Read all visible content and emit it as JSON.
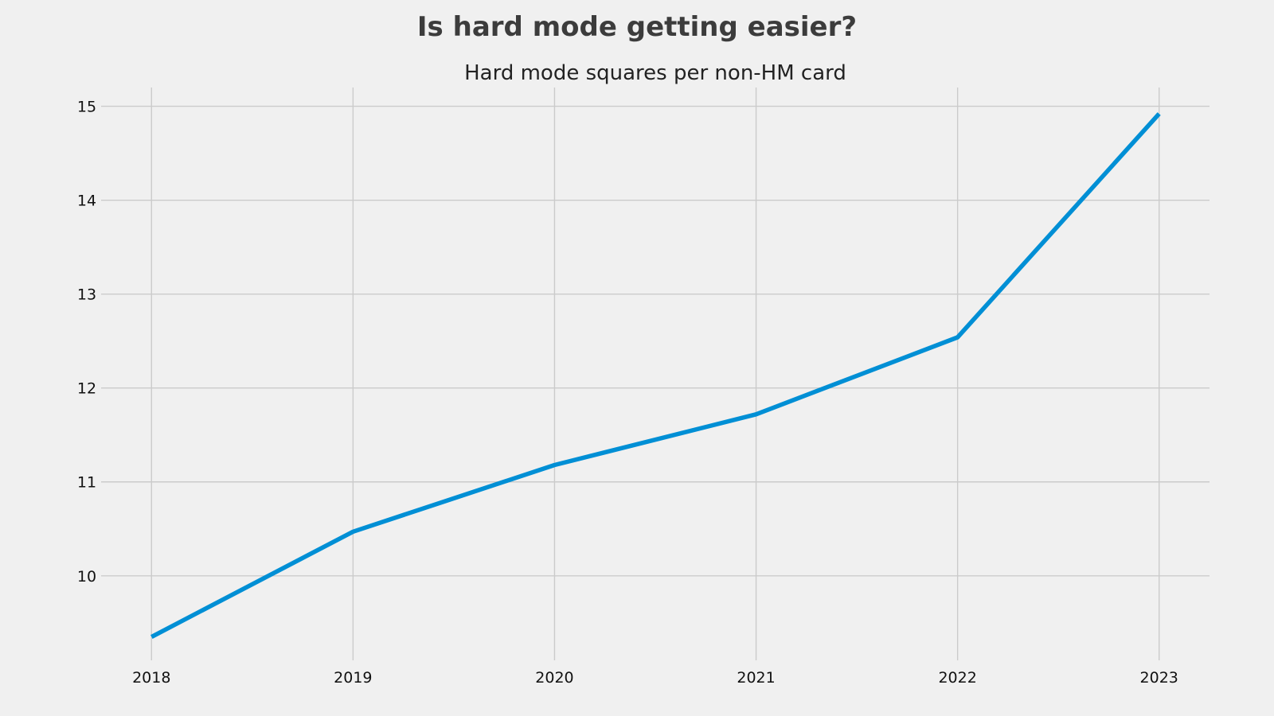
{
  "chart_data": {
    "type": "line",
    "title": "Is hard mode getting easier?",
    "subtitle": "Hard mode squares per non-HM card",
    "xlabel": "",
    "ylabel": "",
    "x": [
      2018,
      2019,
      2020,
      2021,
      2022,
      2023
    ],
    "x_ticks": [
      "2018",
      "2019",
      "2020",
      "2021",
      "2022",
      "2023"
    ],
    "y_ticks": [
      "10",
      "11",
      "12",
      "13",
      "14",
      "15"
    ],
    "series": [
      {
        "values": [
          9.35,
          10.47,
          11.18,
          11.72,
          12.54,
          14.92
        ],
        "color": "#008fd5"
      }
    ],
    "xlim": [
      2017.75,
      2023.25
    ],
    "ylim": [
      9.1,
      15.2
    ],
    "grid": true,
    "legend": "none"
  }
}
